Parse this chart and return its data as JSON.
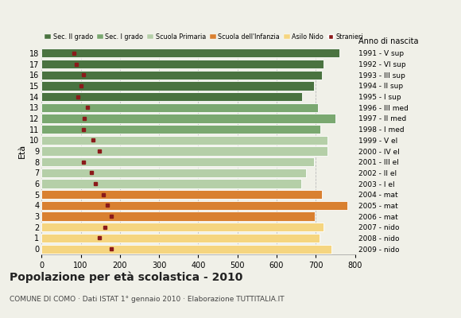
{
  "ages": [
    18,
    17,
    16,
    15,
    14,
    13,
    12,
    11,
    10,
    9,
    8,
    7,
    6,
    5,
    4,
    3,
    2,
    1,
    0
  ],
  "bar_values": [
    760,
    720,
    715,
    695,
    665,
    705,
    750,
    712,
    730,
    730,
    695,
    675,
    662,
    715,
    780,
    698,
    720,
    710,
    740
  ],
  "stranieri": [
    82,
    88,
    108,
    100,
    92,
    118,
    110,
    108,
    132,
    148,
    108,
    128,
    138,
    158,
    168,
    178,
    162,
    148,
    178
  ],
  "right_labels": [
    "1991 - V sup",
    "1992 - VI sup",
    "1993 - III sup",
    "1994 - II sup",
    "1995 - I sup",
    "1996 - III med",
    "1997 - II med",
    "1998 - I med",
    "1999 - V el",
    "2000 - IV el",
    "2001 - III el",
    "2002 - II el",
    "2003 - I el",
    "2004 - mat",
    "2005 - mat",
    "2006 - mat",
    "2007 - nido",
    "2008 - nido",
    "2009 - nido"
  ],
  "bar_colors": [
    "#4a7340",
    "#4a7340",
    "#4a7340",
    "#4a7340",
    "#4a7340",
    "#7aa870",
    "#7aa870",
    "#7aa870",
    "#b5cfa8",
    "#b5cfa8",
    "#b5cfa8",
    "#b5cfa8",
    "#b5cfa8",
    "#d98030",
    "#d98030",
    "#d98030",
    "#f5d580",
    "#f5d580",
    "#f5d580"
  ],
  "legend_labels": [
    "Sec. II grado",
    "Sec. I grado",
    "Scuola Primaria",
    "Scuola dell'Infanzia",
    "Asilo Nido",
    "Stranieri"
  ],
  "legend_colors": [
    "#4a7340",
    "#7aa870",
    "#b5cfa8",
    "#d98030",
    "#f5d580",
    "#8b1a1a"
  ],
  "title": "Popolazione per età scolastica - 2010",
  "subtitle": "COMUNE DI COMO · Dati ISTAT 1° gennaio 2010 · Elaborazione TUTTITALIA.IT",
  "ylabel_left": "Età",
  "ylabel_right": "Anno di nascita",
  "stranieri_color": "#8b1a1a",
  "grid_color": "#bbbbbb",
  "background_color": "#f0f0e8",
  "xlim": [
    0,
    800
  ]
}
